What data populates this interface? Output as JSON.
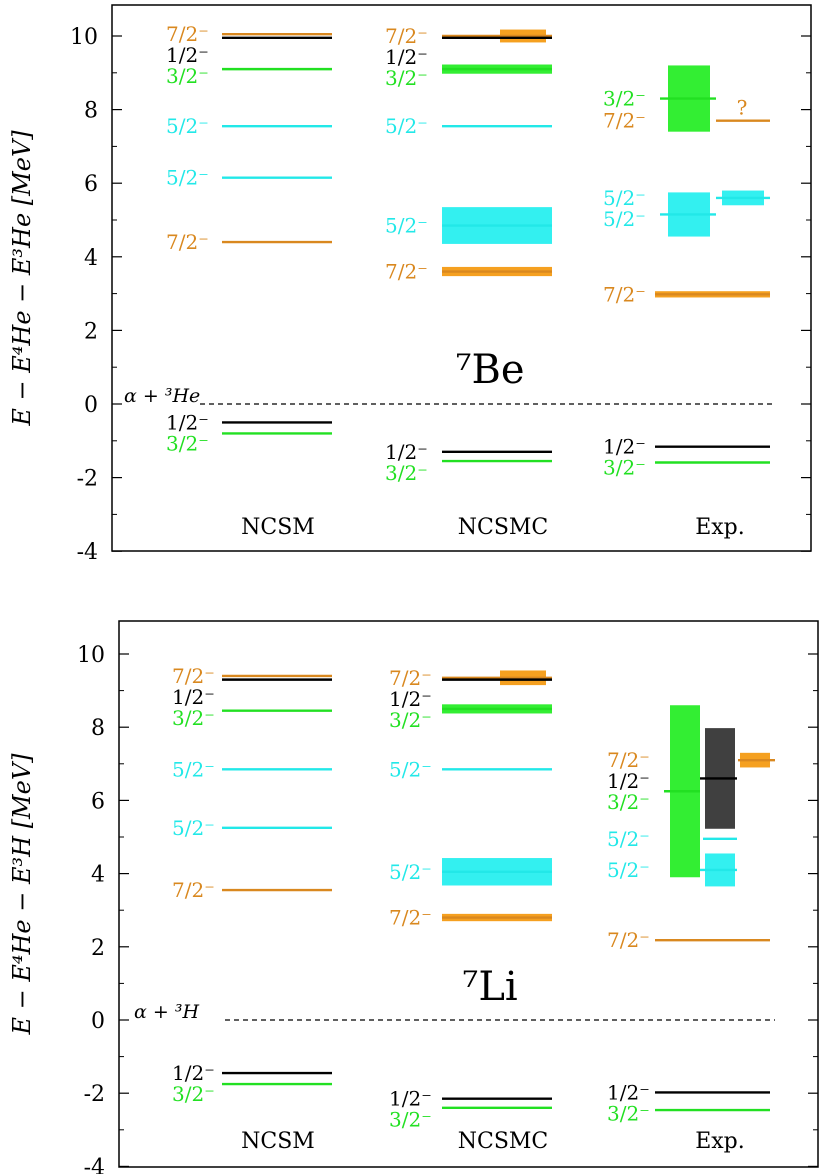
{
  "colors": {
    "j12": "#000000",
    "j32": "#22e022",
    "j52": "#22e8e8",
    "j72": "#d9881f",
    "width72": "#f5a020",
    "width32": "#33ee33",
    "width52": "#33f0f0",
    "width12": "#404040",
    "threshold": "#000000"
  },
  "chart_data": [
    {
      "type": "level-scheme",
      "nucleus_label": "⁷Be",
      "ylabel": "E − E⁴He − E³He [MeV]",
      "ylim": [
        -4,
        11
      ],
      "y_ticks": [
        "-4",
        "-2",
        "0",
        "2",
        "4",
        "6",
        "8",
        "10"
      ],
      "threshold_label": "α + ³He",
      "threshold_value": 0,
      "columns": [
        "NCSM",
        "NCSMC",
        "Exp."
      ],
      "levels": {
        "NCSM": [
          {
            "spin": "7/2⁻",
            "color": "j72",
            "energy": 10.05
          },
          {
            "spin": "1/2⁻",
            "color": "j12",
            "energy": 9.95
          },
          {
            "spin": "3/2⁻",
            "color": "j32",
            "energy": 9.1
          },
          {
            "spin": "5/2⁻",
            "color": "j52",
            "energy": 7.55
          },
          {
            "spin": "5/2⁻",
            "color": "j52",
            "energy": 6.15
          },
          {
            "spin": "7/2⁻",
            "color": "j72",
            "energy": 4.4
          },
          {
            "spin": "1/2⁻",
            "color": "j12",
            "energy": -0.5
          },
          {
            "spin": "3/2⁻",
            "color": "j32",
            "energy": -0.8
          }
        ],
        "NCSMC": [
          {
            "spin": "7/2⁻",
            "color": "j72",
            "energy": 10.0,
            "width": 0.35
          },
          {
            "spin": "1/2⁻",
            "color": "j12",
            "energy": 9.95
          },
          {
            "spin": "3/2⁻",
            "color": "j32",
            "energy": 9.1,
            "width": 0.25
          },
          {
            "spin": "5/2⁻",
            "color": "j52",
            "energy": 7.55
          },
          {
            "spin": "5/2⁻",
            "color": "j52",
            "energy": 4.85,
            "width": 1.0
          },
          {
            "spin": "7/2⁻",
            "color": "j72",
            "energy": 3.6,
            "width": 0.25
          },
          {
            "spin": "1/2⁻",
            "color": "j12",
            "energy": -1.3
          },
          {
            "spin": "3/2⁻",
            "color": "j32",
            "energy": -1.55
          }
        ],
        "Exp.": [
          {
            "spin": "3/2⁻",
            "color": "j32",
            "energy": 8.3,
            "width": 1.8
          },
          {
            "spin": "7/2⁻",
            "color": "j72",
            "energy": 7.7,
            "note": "?"
          },
          {
            "spin": "5/2⁻",
            "color": "j52",
            "energy": 5.6,
            "width": 0.4
          },
          {
            "spin": "5/2⁻",
            "color": "j52",
            "energy": 5.15,
            "width": 1.2
          },
          {
            "spin": "7/2⁻",
            "color": "j72",
            "energy": 2.98,
            "width": 0.17
          },
          {
            "spin": "1/2⁻",
            "color": "j12",
            "energy": -1.16
          },
          {
            "spin": "3/2⁻",
            "color": "j32",
            "energy": -1.59
          }
        ]
      }
    },
    {
      "type": "level-scheme",
      "nucleus_label": "⁷Li",
      "ylabel": "E − E⁴He − E³H [MeV]",
      "ylim": [
        -4,
        11
      ],
      "y_ticks": [
        "-4",
        "-2",
        "0",
        "2",
        "4",
        "6",
        "8",
        "10"
      ],
      "threshold_label": "α + ³H",
      "threshold_value": 0,
      "columns": [
        "NCSM",
        "NCSMC",
        "Exp."
      ],
      "levels": {
        "NCSM": [
          {
            "spin": "7/2⁻",
            "color": "j72",
            "energy": 9.4
          },
          {
            "spin": "1/2⁻",
            "color": "j12",
            "energy": 9.3
          },
          {
            "spin": "3/2⁻",
            "color": "j32",
            "energy": 8.45
          },
          {
            "spin": "5/2⁻",
            "color": "j52",
            "energy": 6.85
          },
          {
            "spin": "5/2⁻",
            "color": "j52",
            "energy": 5.25
          },
          {
            "spin": "7/2⁻",
            "color": "j72",
            "energy": 3.55
          },
          {
            "spin": "1/2⁻",
            "color": "j12",
            "energy": -1.45
          },
          {
            "spin": "3/2⁻",
            "color": "j32",
            "energy": -1.75
          }
        ],
        "NCSMC": [
          {
            "spin": "7/2⁻",
            "color": "j72",
            "energy": 9.35,
            "width": 0.4
          },
          {
            "spin": "1/2⁻",
            "color": "j12",
            "energy": 9.3
          },
          {
            "spin": "3/2⁻",
            "color": "j32",
            "energy": 8.5,
            "width": 0.25
          },
          {
            "spin": "5/2⁻",
            "color": "j52",
            "energy": 6.85
          },
          {
            "spin": "5/2⁻",
            "color": "j52",
            "energy": 4.05,
            "width": 0.75
          },
          {
            "spin": "7/2⁻",
            "color": "j72",
            "energy": 2.8,
            "width": 0.2
          },
          {
            "spin": "1/2⁻",
            "color": "j12",
            "energy": -2.15
          },
          {
            "spin": "3/2⁻",
            "color": "j32",
            "energy": -2.4
          }
        ],
        "Exp.": [
          {
            "spin": "7/2⁻",
            "color": "j72",
            "energy": 7.1,
            "width": 0.4
          },
          {
            "spin": "1/2⁻",
            "color": "j12",
            "energy": 6.6,
            "width": 2.75
          },
          {
            "spin": "3/2⁻",
            "color": "j32",
            "energy": 6.25,
            "width": 4.7
          },
          {
            "spin": "5/2⁻",
            "color": "j52",
            "energy": 4.95
          },
          {
            "spin": "5/2⁻",
            "color": "j52",
            "energy": 4.1,
            "width": 0.9
          },
          {
            "spin": "7/2⁻",
            "color": "j72",
            "energy": 2.18
          },
          {
            "spin": "1/2⁻",
            "color": "j12",
            "energy": -1.98
          },
          {
            "spin": "3/2⁻",
            "color": "j32",
            "energy": -2.46
          }
        ]
      }
    }
  ]
}
